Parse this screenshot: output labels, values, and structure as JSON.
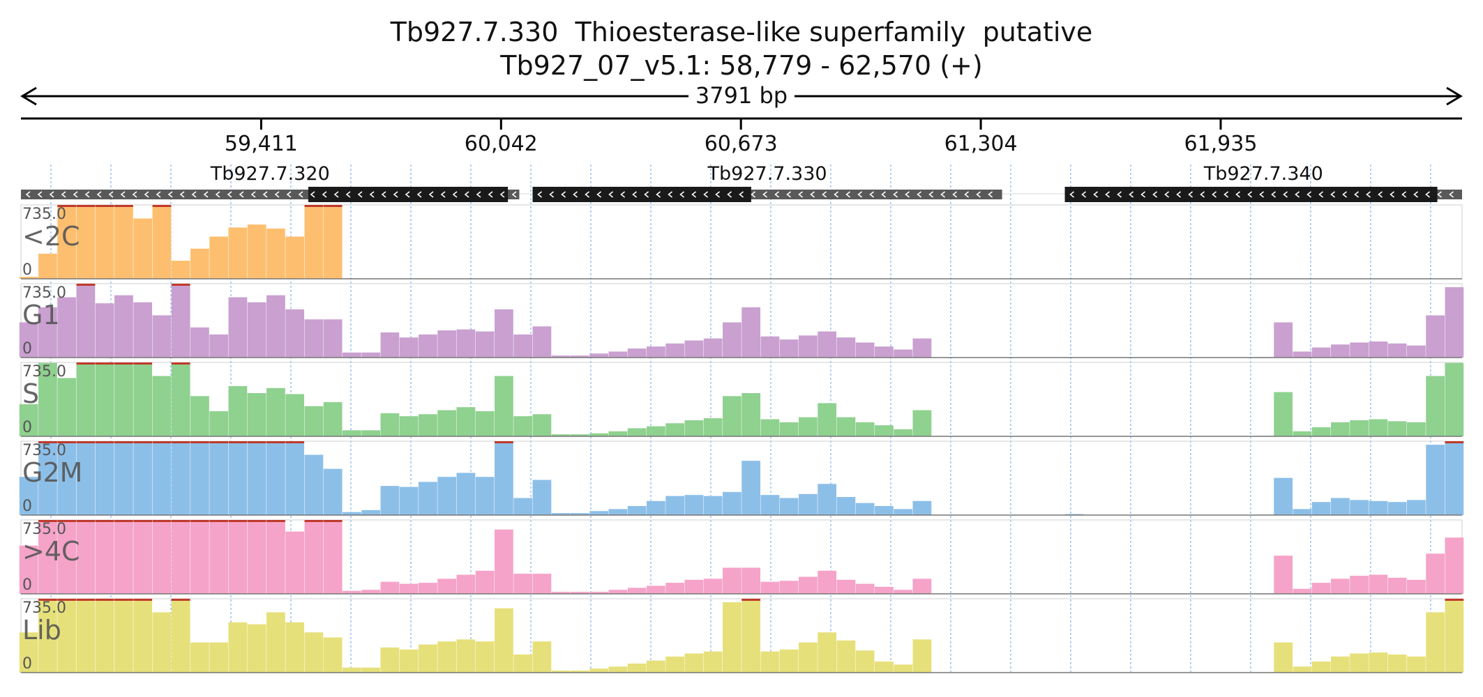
{
  "title": "Tb927.7.330  Thioesterase-like superfamily  putative",
  "subtitle": "Tb927_07_v5.1: 58,779 - 62,570 (+)",
  "region": {
    "start": 58779,
    "end": 62570,
    "length_label": "3791 bp"
  },
  "ruler_ticks": [
    {
      "pos": 59411,
      "label": "59,411"
    },
    {
      "pos": 60042,
      "label": "60,042"
    },
    {
      "pos": 60673,
      "label": "60,673"
    },
    {
      "pos": 61304,
      "label": "61,304"
    },
    {
      "pos": 61935,
      "label": "61,935"
    }
  ],
  "genes": [
    {
      "name": "Tb927.7.320",
      "start": 58779,
      "end": 60090,
      "cds_start": 59535,
      "cds_end": 60060,
      "strand": "-"
    },
    {
      "name": "Tb927.7.330",
      "start": 60125,
      "end": 61360,
      "cds_start": 60125,
      "cds_end": 60700,
      "strand": "-"
    },
    {
      "name": "Tb927.7.340",
      "start": 61525,
      "end": 62570,
      "cds_start": 61525,
      "cds_end": 62505,
      "strand": "-"
    }
  ],
  "tracks": [
    {
      "name": "<2C",
      "color": "#fdbf6f",
      "max_label": "735.0",
      "min_label": "0"
    },
    {
      "name": "G1",
      "color": "#c9a0d0",
      "max_label": "735.0",
      "min_label": "0"
    },
    {
      "name": "S",
      "color": "#8fd18f",
      "max_label": "735.0",
      "min_label": "0"
    },
    {
      "name": "G2M",
      "color": "#8cbfe8",
      "max_label": "735.0",
      "min_label": "0"
    },
    {
      "name": ">4C",
      "color": "#f5a3c9",
      "max_label": "735.0",
      "min_label": "0"
    },
    {
      "name": "Lib",
      "color": "#e6e07a",
      "max_label": "735.0",
      "min_label": "0"
    }
  ],
  "chart_data": {
    "type": "area",
    "x_unit": "bp",
    "xlim": [
      58779,
      62570
    ],
    "ylim": [
      0,
      735
    ],
    "x": [
      58800,
      58850,
      58900,
      58950,
      59000,
      59050,
      59100,
      59150,
      59200,
      59250,
      59300,
      59350,
      59400,
      59450,
      59500,
      59550,
      59600,
      59650,
      59700,
      59750,
      59800,
      59850,
      59900,
      59950,
      60000,
      60050,
      60100,
      60150,
      60200,
      60250,
      60300,
      60350,
      60400,
      60450,
      60500,
      60550,
      60600,
      60650,
      60700,
      60750,
      60800,
      60850,
      60900,
      60950,
      61000,
      61050,
      61100,
      61150,
      61200,
      61250,
      61300,
      61350,
      61400,
      61450,
      61500,
      61550,
      61600,
      61650,
      61700,
      61750,
      61800,
      61850,
      61900,
      61950,
      62000,
      62050,
      62100,
      62150,
      62200,
      62250,
      62300,
      62350,
      62400,
      62450,
      62500,
      62550
    ],
    "series": [
      {
        "name": "<2C",
        "values": [
          20,
          250,
          735,
          735,
          735,
          735,
          600,
          735,
          180,
          300,
          420,
          510,
          540,
          500,
          420,
          735,
          735,
          5,
          0,
          0,
          0,
          5,
          0,
          0,
          0,
          0,
          0,
          0,
          0,
          0,
          0,
          0,
          0,
          0,
          0,
          0,
          0,
          0,
          0,
          0,
          0,
          0,
          0,
          0,
          0,
          0,
          0,
          0,
          0,
          0,
          0,
          0,
          0,
          0,
          0,
          0,
          0,
          0,
          0,
          0,
          0,
          0,
          0,
          0,
          0,
          0,
          0,
          0,
          0,
          0,
          0,
          0,
          0,
          0,
          0,
          0
        ]
      },
      {
        "name": "G1",
        "values": [
          350,
          500,
          600,
          735,
          540,
          620,
          550,
          420,
          735,
          300,
          230,
          600,
          550,
          620,
          480,
          380,
          380,
          50,
          50,
          250,
          200,
          230,
          270,
          280,
          260,
          480,
          230,
          310,
          20,
          20,
          40,
          60,
          90,
          110,
          140,
          170,
          190,
          350,
          500,
          210,
          180,
          220,
          260,
          200,
          150,
          110,
          80,
          190,
          0,
          0,
          0,
          0,
          0,
          0,
          0,
          0,
          0,
          0,
          0,
          0,
          0,
          0,
          0,
          0,
          0,
          5,
          350,
          60,
          100,
          130,
          150,
          160,
          140,
          120,
          420,
          700
        ]
      },
      {
        "name": "S",
        "values": [
          320,
          730,
          580,
          735,
          735,
          735,
          735,
          600,
          735,
          400,
          250,
          500,
          430,
          480,
          420,
          300,
          340,
          60,
          60,
          230,
          200,
          220,
          260,
          290,
          250,
          600,
          200,
          220,
          20,
          20,
          30,
          50,
          80,
          100,
          130,
          160,
          180,
          400,
          430,
          170,
          140,
          190,
          330,
          190,
          140,
          110,
          70,
          260,
          0,
          0,
          0,
          0,
          0,
          0,
          0,
          0,
          0,
          0,
          0,
          0,
          0,
          0,
          0,
          0,
          0,
          5,
          440,
          50,
          90,
          140,
          160,
          170,
          150,
          140,
          600,
          730
        ]
      },
      {
        "name": "G2M",
        "values": [
          380,
          735,
          735,
          735,
          735,
          735,
          735,
          735,
          735,
          735,
          735,
          735,
          735,
          735,
          735,
          600,
          460,
          30,
          50,
          290,
          280,
          330,
          380,
          420,
          380,
          735,
          170,
          350,
          20,
          20,
          40,
          60,
          90,
          140,
          190,
          200,
          190,
          230,
          540,
          200,
          170,
          210,
          310,
          180,
          120,
          90,
          60,
          140,
          0,
          0,
          0,
          0,
          0,
          0,
          0,
          10,
          0,
          0,
          0,
          0,
          0,
          0,
          0,
          0,
          0,
          5,
          370,
          60,
          130,
          170,
          150,
          140,
          130,
          150,
          700,
          735
        ]
      },
      {
        "name": ">4C",
        "values": [
          480,
          735,
          735,
          735,
          735,
          735,
          735,
          735,
          735,
          735,
          735,
          735,
          735,
          735,
          620,
          735,
          735,
          30,
          40,
          120,
          100,
          110,
          150,
          190,
          230,
          640,
          200,
          200,
          20,
          20,
          20,
          40,
          60,
          80,
          110,
          140,
          150,
          260,
          260,
          120,
          130,
          170,
          230,
          140,
          100,
          70,
          40,
          150,
          0,
          0,
          0,
          0,
          0,
          0,
          0,
          0,
          0,
          0,
          0,
          0,
          0,
          0,
          0,
          0,
          0,
          5,
          380,
          50,
          110,
          150,
          180,
          190,
          160,
          140,
          400,
          560
        ]
      },
      {
        "name": "Lib",
        "values": [
          400,
          735,
          735,
          735,
          735,
          735,
          735,
          600,
          735,
          300,
          300,
          500,
          480,
          600,
          500,
          400,
          350,
          50,
          50,
          250,
          230,
          280,
          310,
          330,
          310,
          640,
          180,
          310,
          20,
          20,
          40,
          60,
          90,
          120,
          160,
          190,
          210,
          700,
          735,
          210,
          230,
          300,
          400,
          320,
          220,
          110,
          80,
          330,
          0,
          0,
          0,
          0,
          0,
          0,
          0,
          0,
          0,
          0,
          0,
          0,
          0,
          0,
          0,
          0,
          0,
          5,
          300,
          60,
          110,
          160,
          190,
          200,
          180,
          160,
          600,
          735
        ]
      }
    ]
  }
}
